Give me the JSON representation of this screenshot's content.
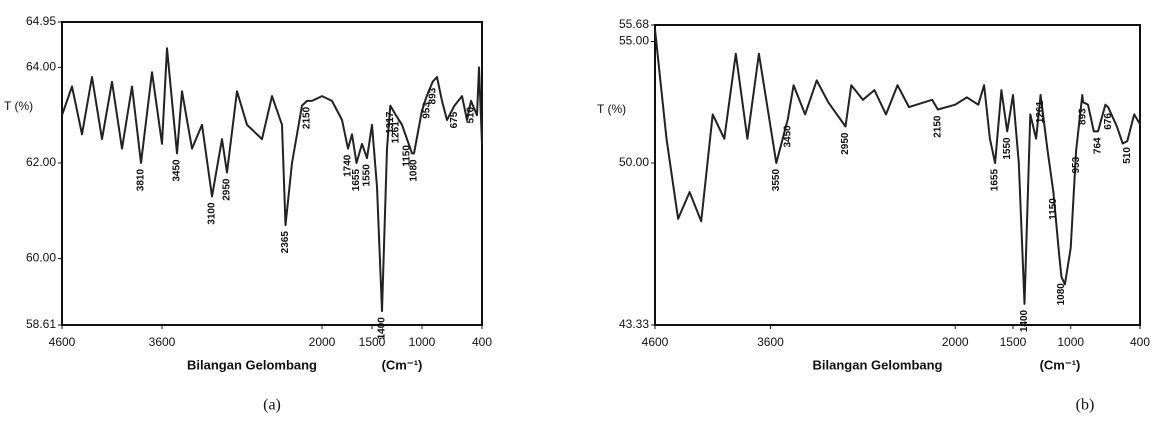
{
  "chart_data": [
    {
      "type": "line",
      "title": "(a)",
      "ylabel": "T (%)",
      "xlabel": "Bilangan Gelombang",
      "xunit": "(Cm⁻¹)",
      "color": "#222222",
      "xlim": [
        4600,
        400
      ],
      "xticks": [
        4600,
        3600,
        2000,
        1500,
        1000,
        400
      ],
      "ylim": [
        58.61,
        64.95
      ],
      "yticks": [
        58.61,
        {
          "value": 60,
          "label": "60.00"
        },
        {
          "value": 62,
          "label": "62.00"
        },
        {
          "value": 64,
          "label": "64.00"
        },
        64.95
      ],
      "x": [
        4600,
        4500,
        4400,
        4300,
        4200,
        4100,
        4000,
        3900,
        3810,
        3700,
        3600,
        3550,
        3450,
        3400,
        3300,
        3200,
        3100,
        3000,
        2950,
        2850,
        2750,
        2600,
        2500,
        2400,
        2365,
        2300,
        2200,
        2150,
        2100,
        2000,
        1900,
        1800,
        1740,
        1700,
        1655,
        1600,
        1550,
        1500,
        1450,
        1400,
        1350,
        1317,
        1261,
        1200,
        1150,
        1100,
        1080,
        1000,
        953,
        893,
        850,
        800,
        750,
        675,
        600,
        550,
        510,
        450,
        430,
        400
      ],
      "values": [
        63.0,
        63.6,
        62.6,
        63.8,
        62.5,
        63.7,
        62.3,
        63.6,
        62.0,
        63.9,
        62.4,
        64.4,
        62.2,
        63.5,
        62.3,
        62.8,
        61.3,
        62.5,
        61.8,
        63.5,
        62.8,
        62.5,
        63.4,
        62.8,
        60.7,
        62.0,
        63.2,
        63.3,
        63.3,
        63.4,
        63.3,
        62.9,
        62.3,
        62.6,
        62.0,
        62.4,
        62.1,
        62.8,
        61.5,
        58.9,
        62.3,
        63.2,
        63.0,
        62.8,
        62.5,
        62.2,
        62.2,
        63.1,
        63.4,
        63.7,
        63.8,
        63.3,
        62.9,
        63.2,
        63.4,
        62.9,
        63.3,
        63.0,
        64.0,
        62.4
      ],
      "annotations": [
        {
          "text": "3810",
          "x": 3810,
          "y": 62.0
        },
        {
          "text": "3450",
          "x": 3450,
          "y": 62.2
        },
        {
          "text": "3100",
          "x": 3100,
          "y": 61.3
        },
        {
          "text": "2950",
          "x": 2950,
          "y": 61.8
        },
        {
          "text": "2365",
          "x": 2365,
          "y": 60.7
        },
        {
          "text": "2150",
          "x": 2150,
          "y": 63.3
        },
        {
          "text": "1740",
          "x": 1740,
          "y": 62.3
        },
        {
          "text": "1655",
          "x": 1655,
          "y": 62.0
        },
        {
          "text": "1550",
          "x": 1550,
          "y": 62.1
        },
        {
          "text": "1400",
          "x": 1400,
          "y": 58.9
        },
        {
          "text": "1317",
          "x": 1317,
          "y": 63.2
        },
        {
          "text": "1261",
          "x": 1261,
          "y": 63.0
        },
        {
          "text": "1150",
          "x": 1150,
          "y": 62.5
        },
        {
          "text": "1080",
          "x": 1080,
          "y": 62.2
        },
        {
          "text": "953",
          "x": 953,
          "y": 63.4
        },
        {
          "text": "893",
          "x": 893,
          "y": 63.7
        },
        {
          "text": "675",
          "x": 675,
          "y": 63.2
        },
        {
          "text": "510",
          "x": 510,
          "y": 63.3
        }
      ]
    },
    {
      "type": "line",
      "title": "(b)",
      "ylabel": "T (%)",
      "xlabel": "Bilangan Gelombang",
      "xunit": "(Cm⁻¹)",
      "color": "#222222",
      "xlim": [
        4600,
        400
      ],
      "xticks": [
        4600,
        3600,
        2000,
        1500,
        1000,
        400
      ],
      "ylim": [
        43.33,
        55.68
      ],
      "yticks": [
        43.33,
        {
          "value": 50,
          "label": "50.00"
        },
        {
          "value": 55,
          "label": "55.00"
        },
        55.68
      ],
      "x": [
        4600,
        4500,
        4400,
        4300,
        4200,
        4100,
        4000,
        3900,
        3800,
        3700,
        3550,
        3450,
        3400,
        3300,
        3200,
        3100,
        2950,
        2900,
        2800,
        2700,
        2600,
        2500,
        2400,
        2200,
        2150,
        2000,
        1900,
        1800,
        1750,
        1700,
        1655,
        1600,
        1550,
        1500,
        1450,
        1400,
        1350,
        1300,
        1261,
        1200,
        1150,
        1100,
        1080,
        1050,
        1000,
        953,
        900,
        893,
        850,
        800,
        764,
        700,
        676,
        600,
        550,
        510,
        450,
        400
      ],
      "values": [
        55.5,
        51.0,
        47.7,
        48.8,
        47.6,
        52.0,
        51.0,
        54.5,
        51.0,
        54.5,
        50.0,
        51.8,
        53.2,
        52.0,
        53.4,
        52.5,
        51.5,
        53.2,
        52.6,
        53.0,
        52.0,
        53.2,
        52.3,
        52.6,
        52.2,
        52.4,
        52.7,
        52.4,
        53.2,
        51.0,
        50.0,
        53.0,
        51.3,
        52.8,
        50.0,
        44.2,
        52.0,
        51.0,
        52.8,
        50.5,
        48.8,
        46.2,
        45.3,
        45.0,
        46.5,
        50.5,
        52.8,
        52.5,
        52.4,
        51.3,
        51.3,
        52.4,
        52.3,
        51.5,
        50.8,
        50.9,
        52.0,
        51.6
      ],
      "annotations": [
        {
          "text": "3550",
          "x": 3550,
          "y": 50.0
        },
        {
          "text": "3450",
          "x": 3450,
          "y": 51.8
        },
        {
          "text": "2950",
          "x": 2950,
          "y": 51.5
        },
        {
          "text": "2150",
          "x": 2150,
          "y": 52.2
        },
        {
          "text": "1655",
          "x": 1655,
          "y": 50.0
        },
        {
          "text": "1550",
          "x": 1550,
          "y": 51.3
        },
        {
          "text": "1400",
          "x": 1400,
          "y": 44.2
        },
        {
          "text": "1261",
          "x": 1261,
          "y": 52.8
        },
        {
          "text": "1150",
          "x": 1150,
          "y": 48.8
        },
        {
          "text": "1080",
          "x": 1080,
          "y": 45.3
        },
        {
          "text": "953",
          "x": 953,
          "y": 50.5
        },
        {
          "text": "893",
          "x": 893,
          "y": 52.5
        },
        {
          "text": "764",
          "x": 764,
          "y": 51.3
        },
        {
          "text": "676",
          "x": 676,
          "y": 52.3
        },
        {
          "text": "510",
          "x": 510,
          "y": 50.9
        }
      ]
    }
  ]
}
